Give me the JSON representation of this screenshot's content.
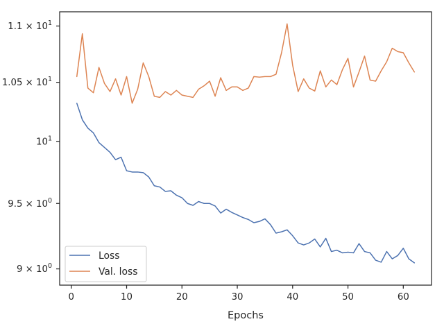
{
  "chart_data": {
    "type": "line",
    "title": "",
    "xlabel": "Epochs",
    "ylabel": "",
    "yscale": "log",
    "grid": false,
    "legend_position": "lower-left",
    "xlim": [
      -2.1,
      65.1
    ],
    "ylim": [
      8.88,
      11.13
    ],
    "x_ticks": [
      0,
      10,
      20,
      30,
      40,
      50,
      60
    ],
    "x_tick_labels": [
      "0",
      "10",
      "20",
      "30",
      "40",
      "50",
      "60"
    ],
    "y_ticks": [
      9.0,
      9.5,
      10.0,
      10.5,
      11.0
    ],
    "y_tick_labels": [
      {
        "mantissa": "9",
        "exp": "0"
      },
      {
        "mantissa": "9.5",
        "exp": "0"
      },
      {
        "mantissa": "10",
        "exp": "1",
        "plain": true
      },
      {
        "mantissa": "1.05",
        "exp": "1"
      },
      {
        "mantissa": "1.1",
        "exp": "1"
      }
    ],
    "tick_base": "10",
    "series": [
      {
        "name": "Loss",
        "color": "#4c72b0",
        "x": [
          1,
          2,
          3,
          4,
          5,
          6,
          7,
          8,
          9,
          10,
          11,
          12,
          13,
          14,
          15,
          16,
          17,
          18,
          19,
          20,
          21,
          22,
          23,
          24,
          25,
          26,
          27,
          28,
          29,
          30,
          31,
          32,
          33,
          34,
          35,
          36,
          37,
          38,
          39,
          40,
          41,
          42,
          43,
          44,
          45,
          46,
          47,
          48,
          49,
          50,
          51,
          52,
          53,
          54,
          55,
          56,
          57,
          58,
          59,
          60,
          61,
          62
        ],
        "y": [
          10.32,
          10.18,
          10.11,
          10.07,
          9.99,
          9.95,
          9.91,
          9.85,
          9.87,
          9.76,
          9.75,
          9.75,
          9.745,
          9.71,
          9.64,
          9.63,
          9.595,
          9.6,
          9.565,
          9.545,
          9.5,
          9.485,
          9.515,
          9.5,
          9.5,
          9.48,
          9.425,
          9.455,
          9.43,
          9.41,
          9.39,
          9.375,
          9.35,
          9.36,
          9.38,
          9.335,
          9.27,
          9.28,
          9.295,
          9.25,
          9.195,
          9.18,
          9.195,
          9.225,
          9.165,
          9.23,
          9.13,
          9.14,
          9.12,
          9.125,
          9.12,
          9.19,
          9.13,
          9.12,
          9.065,
          9.05,
          9.13,
          9.075,
          9.1,
          9.155,
          9.075,
          9.045
        ]
      },
      {
        "name": "Val. loss",
        "color": "#dd8452",
        "x": [
          1,
          2,
          3,
          4,
          5,
          6,
          7,
          8,
          9,
          10,
          11,
          12,
          13,
          14,
          15,
          16,
          17,
          18,
          19,
          20,
          21,
          22,
          23,
          24,
          25,
          26,
          27,
          28,
          29,
          30,
          31,
          32,
          33,
          34,
          35,
          36,
          37,
          38,
          39,
          40,
          41,
          42,
          43,
          44,
          45,
          46,
          47,
          48,
          49,
          50,
          51,
          52,
          53,
          54,
          55,
          56,
          57,
          58,
          59,
          60,
          61,
          62
        ],
        "y": [
          10.55,
          10.93,
          10.45,
          10.41,
          10.63,
          10.49,
          10.42,
          10.53,
          10.39,
          10.55,
          10.32,
          10.44,
          10.67,
          10.55,
          10.38,
          10.37,
          10.42,
          10.39,
          10.43,
          10.39,
          10.38,
          10.37,
          10.44,
          10.47,
          10.51,
          10.38,
          10.54,
          10.43,
          10.46,
          10.46,
          10.43,
          10.45,
          10.55,
          10.545,
          10.55,
          10.55,
          10.57,
          10.76,
          11.02,
          10.65,
          10.42,
          10.53,
          10.45,
          10.425,
          10.6,
          10.46,
          10.52,
          10.48,
          10.61,
          10.71,
          10.46,
          10.59,
          10.73,
          10.52,
          10.51,
          10.6,
          10.68,
          10.8,
          10.77,
          10.76,
          10.67,
          10.59
        ]
      }
    ]
  }
}
